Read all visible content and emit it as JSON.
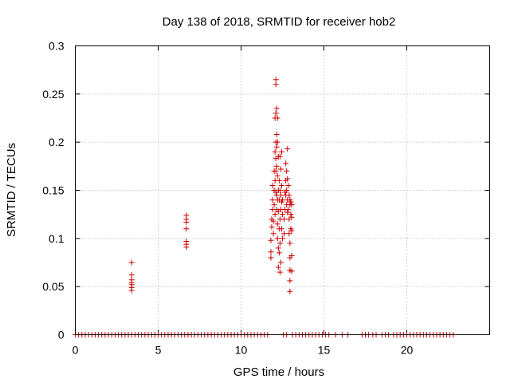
{
  "chart_data": {
    "type": "scatter",
    "title": "Day 138 of 2018, SRMTID for receiver hob2",
    "xlabel": "GPS time / hours",
    "ylabel": "SRMTID / TECUs",
    "xlim": [
      0,
      25
    ],
    "ylim": [
      0,
      0.3
    ],
    "x_ticks": [
      0,
      5,
      10,
      15,
      20
    ],
    "x_tick_labels": [
      "0",
      "5",
      "10",
      "15",
      "20"
    ],
    "y_ticks": [
      0,
      0.05,
      0.1,
      0.15,
      0.2,
      0.25,
      0.3
    ],
    "y_tick_labels": [
      "0",
      "0.05",
      "0.1",
      "0.15",
      "0.2",
      "0.25",
      "0.3"
    ],
    "grid": true,
    "marker": "+",
    "color": "#cc0000",
    "zero_segments": [
      [
        0.0,
        11.75
      ],
      [
        12.55,
        12.75
      ],
      [
        13.1,
        15.45
      ],
      [
        15.7,
        15.75
      ],
      [
        16.1,
        16.15
      ],
      [
        16.45,
        16.5
      ],
      [
        17.3,
        17.7
      ],
      [
        17.95,
        18.3
      ],
      [
        18.5,
        18.9
      ],
      [
        19.2,
        22.8
      ]
    ],
    "series": [
      {
        "name": "SRMTID",
        "points": [
          [
            3.4,
            0.075
          ],
          [
            3.4,
            0.062
          ],
          [
            3.4,
            0.057
          ],
          [
            3.4,
            0.054
          ],
          [
            3.4,
            0.052
          ],
          [
            3.4,
            0.049
          ],
          [
            3.4,
            0.046
          ],
          [
            6.7,
            0.124
          ],
          [
            6.7,
            0.12
          ],
          [
            6.7,
            0.117
          ],
          [
            6.7,
            0.11
          ],
          [
            6.7,
            0.097
          ],
          [
            6.7,
            0.094
          ],
          [
            6.7,
            0.091
          ],
          [
            11.8,
            0.098
          ],
          [
            11.8,
            0.086
          ],
          [
            11.8,
            0.08
          ],
          [
            11.85,
            0.12
          ],
          [
            11.85,
            0.112
          ],
          [
            11.9,
            0.155
          ],
          [
            11.9,
            0.14
          ],
          [
            11.9,
            0.13
          ],
          [
            11.95,
            0.118
          ],
          [
            11.95,
            0.105
          ],
          [
            12.0,
            0.17
          ],
          [
            12.0,
            0.15
          ],
          [
            12.0,
            0.135
          ],
          [
            12.05,
            0.225
          ],
          [
            12.05,
            0.19
          ],
          [
            12.05,
            0.16
          ],
          [
            12.05,
            0.125
          ],
          [
            12.1,
            0.265
          ],
          [
            12.1,
            0.26
          ],
          [
            12.1,
            0.23
          ],
          [
            12.1,
            0.2
          ],
          [
            12.1,
            0.183
          ],
          [
            12.1,
            0.17
          ],
          [
            12.1,
            0.148
          ],
          [
            12.15,
            0.235
          ],
          [
            12.15,
            0.208
          ],
          [
            12.15,
            0.195
          ],
          [
            12.15,
            0.175
          ],
          [
            12.15,
            0.145
          ],
          [
            12.15,
            0.13
          ],
          [
            12.2,
            0.225
          ],
          [
            12.2,
            0.2
          ],
          [
            12.2,
            0.165
          ],
          [
            12.2,
            0.14
          ],
          [
            12.2,
            0.115
          ],
          [
            12.2,
            0.1
          ],
          [
            12.25,
            0.185
          ],
          [
            12.25,
            0.15
          ],
          [
            12.25,
            0.128
          ],
          [
            12.25,
            0.09
          ],
          [
            12.25,
            0.07
          ],
          [
            12.3,
            0.16
          ],
          [
            12.3,
            0.14
          ],
          [
            12.3,
            0.11
          ],
          [
            12.3,
            0.085
          ],
          [
            12.35,
            0.185
          ],
          [
            12.35,
            0.15
          ],
          [
            12.35,
            0.12
          ],
          [
            12.35,
            0.095
          ],
          [
            12.35,
            0.065
          ],
          [
            12.4,
            0.172
          ],
          [
            12.4,
            0.145
          ],
          [
            12.4,
            0.13
          ],
          [
            12.4,
            0.075
          ],
          [
            12.45,
            0.19
          ],
          [
            12.45,
            0.155
          ],
          [
            12.45,
            0.138
          ],
          [
            12.45,
            0.11
          ],
          [
            12.5,
            0.14
          ],
          [
            12.5,
            0.125
          ],
          [
            12.5,
            0.1
          ],
          [
            12.6,
            0.12
          ],
          [
            12.6,
            0.105
          ],
          [
            12.65,
            0.148
          ],
          [
            12.65,
            0.13
          ],
          [
            12.7,
            0.178
          ],
          [
            12.7,
            0.16
          ],
          [
            12.7,
            0.145
          ],
          [
            12.75,
            0.17
          ],
          [
            12.75,
            0.15
          ],
          [
            12.75,
            0.135
          ],
          [
            12.8,
            0.193
          ],
          [
            12.8,
            0.162
          ],
          [
            12.8,
            0.14
          ],
          [
            12.8,
            0.127
          ],
          [
            12.85,
            0.155
          ],
          [
            12.85,
            0.13
          ],
          [
            12.9,
            0.145
          ],
          [
            12.9,
            0.12
          ],
          [
            12.9,
            0.105
          ],
          [
            12.95,
            0.14
          ],
          [
            12.95,
            0.135
          ],
          [
            12.95,
            0.095
          ],
          [
            12.95,
            0.08
          ],
          [
            12.95,
            0.067
          ],
          [
            12.95,
            0.056
          ],
          [
            12.95,
            0.045
          ],
          [
            13.0,
            0.138
          ],
          [
            13.0,
            0.125
          ],
          [
            13.0,
            0.11
          ],
          [
            13.05,
            0.135
          ],
          [
            13.05,
            0.122
          ],
          [
            13.05,
            0.108
          ],
          [
            13.05,
            0.082
          ],
          [
            13.05,
            0.066
          ]
        ]
      }
    ]
  }
}
